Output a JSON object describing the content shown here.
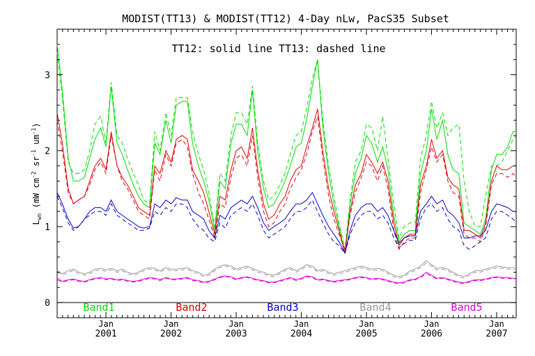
{
  "chart_data": {
    "type": "line",
    "title": "MODIST(TT13) & MODIST(TT12) 4-Day nLw, PacS35 Subset",
    "subtitle": "TT12: solid line   TT13: dashed line",
    "ylabel_main": "L",
    "ylabel_sub": "wn",
    "ylabel_units_a": "(mW cm",
    "ylabel_units_b": "sr",
    "ylabel_units_c": "um",
    "ylabel_units_d": ")",
    "ylabel_exp": "-2",
    "ylabel_exp2": "-1",
    "ylabel_exp3": "-1",
    "xlim": [
      2000.25,
      2007.3
    ],
    "ylim": [
      -0.2,
      3.6
    ],
    "y_ticks": [
      0,
      1,
      2,
      3
    ],
    "y_ticklabels": [
      "0",
      "1",
      "2",
      "3"
    ],
    "x_ticks": [
      2001.0,
      2002.0,
      2003.0,
      2004.0,
      2005.0,
      2006.0,
      2007.0
    ],
    "x_month_label": "Jan",
    "x_year_labels": [
      "2001",
      "2002",
      "2003",
      "2004",
      "2005",
      "2006",
      "2007"
    ],
    "grid": false,
    "legend_position": "bottom, inside plot",
    "x": [
      2000.25,
      2000.33,
      2000.42,
      2000.5,
      2000.58,
      2000.67,
      2000.75,
      2000.83,
      2000.92,
      2001.0,
      2001.08,
      2001.17,
      2001.25,
      2001.33,
      2001.42,
      2001.5,
      2001.58,
      2001.67,
      2001.75,
      2001.83,
      2001.92,
      2002.0,
      2002.08,
      2002.17,
      2002.25,
      2002.33,
      2002.42,
      2002.5,
      2002.58,
      2002.67,
      2002.75,
      2002.83,
      2002.92,
      2003.0,
      2003.08,
      2003.17,
      2003.25,
      2003.33,
      2003.42,
      2003.5,
      2003.58,
      2003.67,
      2003.75,
      2003.83,
      2003.92,
      2004.0,
      2004.08,
      2004.17,
      2004.25,
      2004.33,
      2004.42,
      2004.5,
      2004.58,
      2004.67,
      2004.75,
      2004.83,
      2004.92,
      2005.0,
      2005.08,
      2005.17,
      2005.25,
      2005.33,
      2005.42,
      2005.5,
      2005.58,
      2005.67,
      2005.75,
      2005.83,
      2005.92,
      2006.0,
      2006.08,
      2006.17,
      2006.25,
      2006.33,
      2006.42,
      2006.5,
      2006.58,
      2006.67,
      2006.75,
      2006.83,
      2006.92,
      2007.0,
      2007.08,
      2007.17,
      2007.25,
      2007.3
    ],
    "series": [
      {
        "name": "Band1",
        "color": "#00dd00",
        "style": "solid",
        "values": [
          3.4,
          2.8,
          1.9,
          1.6,
          1.6,
          1.65,
          1.9,
          2.15,
          2.3,
          2.05,
          2.85,
          2.1,
          1.95,
          1.75,
          1.55,
          1.4,
          1.3,
          1.25,
          2.1,
          1.95,
          2.4,
          2.1,
          2.6,
          2.65,
          2.65,
          2.1,
          1.8,
          1.6,
          1.35,
          0.95,
          1.6,
          1.5,
          2.1,
          2.35,
          2.35,
          2.2,
          2.8,
          2.0,
          1.5,
          1.25,
          1.3,
          1.45,
          1.6,
          1.8,
          2.05,
          2.1,
          2.4,
          2.85,
          3.2,
          2.3,
          1.7,
          1.3,
          1.0,
          0.65,
          1.3,
          1.7,
          1.9,
          2.2,
          2.1,
          1.85,
          2.05,
          1.75,
          1.15,
          0.8,
          0.9,
          0.95,
          0.95,
          1.7,
          2.0,
          2.55,
          2.15,
          2.4,
          1.95,
          1.75,
          1.7,
          1.05,
          1.0,
          0.95,
          0.9,
          1.1,
          1.75,
          1.95,
          1.95,
          2.05,
          2.25,
          2.25
        ]
      },
      {
        "name": "Band1 TT13",
        "color": "#00dd00",
        "style": "dashed",
        "values": [
          3.3,
          2.7,
          1.85,
          1.7,
          1.7,
          1.75,
          2.0,
          2.35,
          2.45,
          2.1,
          2.9,
          2.2,
          2.1,
          1.9,
          1.7,
          1.55,
          1.35,
          1.3,
          2.25,
          2.0,
          2.5,
          2.2,
          2.7,
          2.7,
          2.7,
          2.25,
          1.95,
          1.75,
          1.45,
          1.0,
          1.7,
          1.6,
          2.2,
          2.5,
          2.5,
          2.35,
          2.85,
          2.1,
          1.6,
          1.35,
          1.4,
          1.55,
          1.7,
          1.95,
          2.2,
          2.25,
          2.55,
          2.95,
          3.2,
          2.4,
          1.8,
          1.4,
          1.05,
          0.7,
          1.35,
          1.85,
          2.0,
          2.35,
          2.3,
          2.0,
          2.45,
          1.9,
          1.3,
          0.85,
          1.0,
          1.05,
          1.05,
          1.9,
          2.2,
          2.65,
          2.3,
          2.5,
          2.2,
          2.3,
          2.35,
          1.6,
          1.2,
          1.0,
          1.0,
          1.4,
          1.8,
          1.8,
          1.85,
          2.0,
          2.15,
          2.2
        ]
      },
      {
        "name": "Band2",
        "color": "#dd0000",
        "style": "solid",
        "values": [
          2.5,
          2.1,
          1.5,
          1.3,
          1.35,
          1.4,
          1.6,
          1.8,
          1.9,
          1.75,
          2.25,
          1.8,
          1.65,
          1.55,
          1.4,
          1.25,
          1.2,
          1.15,
          1.8,
          1.7,
          2.0,
          1.85,
          2.15,
          2.2,
          2.15,
          1.75,
          1.6,
          1.45,
          1.2,
          0.9,
          1.4,
          1.35,
          1.75,
          2.0,
          2.05,
          1.9,
          2.3,
          1.75,
          1.3,
          1.1,
          1.15,
          1.3,
          1.4,
          1.6,
          1.75,
          1.8,
          2.05,
          2.3,
          2.55,
          2.0,
          1.5,
          1.2,
          0.95,
          0.65,
          1.2,
          1.55,
          1.7,
          1.95,
          1.85,
          1.7,
          1.85,
          1.6,
          1.05,
          0.75,
          0.85,
          0.9,
          0.9,
          1.55,
          1.8,
          2.15,
          1.9,
          2.0,
          1.65,
          1.55,
          1.5,
          0.95,
          0.95,
          0.9,
          0.85,
          1.05,
          1.6,
          1.8,
          1.75,
          1.75,
          1.8,
          1.8
        ]
      },
      {
        "name": "Band2 TT13",
        "color": "#dd0000",
        "style": "dashed",
        "values": [
          2.4,
          2.0,
          1.45,
          1.3,
          1.35,
          1.4,
          1.55,
          1.75,
          1.85,
          1.7,
          2.2,
          1.8,
          1.6,
          1.5,
          1.35,
          1.2,
          1.15,
          1.1,
          1.75,
          1.6,
          1.95,
          1.8,
          2.1,
          2.15,
          2.05,
          1.7,
          1.45,
          1.3,
          1.1,
          0.85,
          1.3,
          1.25,
          1.65,
          1.9,
          1.95,
          1.8,
          2.2,
          1.65,
          1.2,
          1.0,
          1.05,
          1.2,
          1.3,
          1.5,
          1.65,
          1.75,
          1.95,
          2.25,
          2.45,
          1.9,
          1.4,
          1.1,
          0.9,
          0.7,
          1.15,
          1.45,
          1.65,
          1.85,
          1.8,
          1.6,
          1.8,
          1.5,
          0.95,
          0.7,
          0.8,
          0.85,
          0.85,
          1.45,
          1.75,
          2.05,
          1.85,
          1.95,
          1.6,
          1.45,
          1.4,
          0.9,
          0.85,
          0.85,
          0.8,
          1.0,
          1.55,
          1.7,
          1.7,
          1.65,
          1.7,
          1.65
        ]
      },
      {
        "name": "Band3",
        "color": "#0000cc",
        "style": "solid",
        "values": [
          1.45,
          1.3,
          1.1,
          0.98,
          1.0,
          1.1,
          1.2,
          1.25,
          1.25,
          1.2,
          1.35,
          1.2,
          1.15,
          1.1,
          1.05,
          1.0,
          0.98,
          1.0,
          1.3,
          1.25,
          1.35,
          1.3,
          1.38,
          1.35,
          1.35,
          1.2,
          1.15,
          1.1,
          0.95,
          0.85,
          1.15,
          1.1,
          1.25,
          1.3,
          1.35,
          1.3,
          1.4,
          1.25,
          1.05,
          0.95,
          1.0,
          1.05,
          1.1,
          1.2,
          1.3,
          1.3,
          1.35,
          1.45,
          1.3,
          1.15,
          1.0,
          0.9,
          0.8,
          0.65,
          0.95,
          1.15,
          1.25,
          1.3,
          1.3,
          1.2,
          1.25,
          1.15,
          0.95,
          0.78,
          0.85,
          0.88,
          0.88,
          1.2,
          1.3,
          1.4,
          1.3,
          1.35,
          1.2,
          1.15,
          1.05,
          0.85,
          0.85,
          0.88,
          0.88,
          0.95,
          1.2,
          1.3,
          1.28,
          1.25,
          1.2,
          1.2
        ]
      },
      {
        "name": "Band3 TT13",
        "color": "#0000cc",
        "style": "dashed",
        "values": [
          1.4,
          1.25,
          1.05,
          0.95,
          1.0,
          1.1,
          1.15,
          1.2,
          1.2,
          1.15,
          1.3,
          1.15,
          1.1,
          1.05,
          1.0,
          0.95,
          0.95,
          0.98,
          1.2,
          1.15,
          1.25,
          1.2,
          1.3,
          1.3,
          1.25,
          1.1,
          1.0,
          0.95,
          0.85,
          0.8,
          1.05,
          0.98,
          1.15,
          1.2,
          1.25,
          1.2,
          1.3,
          1.15,
          0.95,
          0.85,
          0.9,
          0.95,
          1.0,
          1.1,
          1.2,
          1.2,
          1.25,
          1.35,
          1.2,
          1.05,
          0.9,
          0.8,
          0.75,
          0.65,
          0.9,
          1.05,
          1.15,
          1.2,
          1.2,
          1.1,
          1.15,
          1.05,
          0.85,
          0.72,
          0.78,
          0.82,
          0.82,
          1.1,
          1.25,
          1.3,
          1.2,
          1.25,
          1.1,
          1.0,
          0.95,
          0.75,
          0.7,
          0.75,
          0.8,
          0.85,
          1.1,
          1.2,
          1.2,
          1.15,
          1.1,
          1.05
        ]
      },
      {
        "name": "Band4",
        "color": "#999999",
        "style": "solid",
        "values": [
          0.42,
          0.38,
          0.42,
          0.44,
          0.4,
          0.38,
          0.4,
          0.44,
          0.45,
          0.43,
          0.45,
          0.42,
          0.44,
          0.4,
          0.38,
          0.4,
          0.44,
          0.46,
          0.45,
          0.42,
          0.46,
          0.44,
          0.44,
          0.45,
          0.46,
          0.42,
          0.4,
          0.36,
          0.38,
          0.44,
          0.48,
          0.5,
          0.48,
          0.44,
          0.46,
          0.48,
          0.45,
          0.42,
          0.4,
          0.37,
          0.36,
          0.4,
          0.44,
          0.46,
          0.42,
          0.45,
          0.5,
          0.48,
          0.42,
          0.44,
          0.4,
          0.38,
          0.4,
          0.42,
          0.44,
          0.46,
          0.48,
          0.46,
          0.44,
          0.45,
          0.44,
          0.4,
          0.36,
          0.34,
          0.36,
          0.42,
          0.44,
          0.48,
          0.55,
          0.5,
          0.45,
          0.46,
          0.44,
          0.4,
          0.36,
          0.34,
          0.38,
          0.42,
          0.42,
          0.44,
          0.46,
          0.48,
          0.47,
          0.46,
          0.46,
          0.45
        ]
      },
      {
        "name": "Band4 TT13",
        "color": "#999999",
        "style": "dashed",
        "values": [
          0.4,
          0.36,
          0.4,
          0.42,
          0.38,
          0.36,
          0.38,
          0.42,
          0.43,
          0.41,
          0.43,
          0.4,
          0.42,
          0.38,
          0.36,
          0.38,
          0.42,
          0.44,
          0.43,
          0.4,
          0.44,
          0.42,
          0.42,
          0.43,
          0.44,
          0.4,
          0.38,
          0.34,
          0.36,
          0.42,
          0.46,
          0.48,
          0.46,
          0.42,
          0.44,
          0.46,
          0.43,
          0.4,
          0.38,
          0.35,
          0.34,
          0.38,
          0.42,
          0.44,
          0.4,
          0.43,
          0.48,
          0.46,
          0.4,
          0.42,
          0.38,
          0.36,
          0.38,
          0.4,
          0.42,
          0.44,
          0.46,
          0.44,
          0.42,
          0.43,
          0.42,
          0.38,
          0.34,
          0.32,
          0.34,
          0.4,
          0.42,
          0.46,
          0.52,
          0.48,
          0.43,
          0.44,
          0.42,
          0.38,
          0.34,
          0.32,
          0.36,
          0.4,
          0.4,
          0.42,
          0.44,
          0.46,
          0.45,
          0.44,
          0.44,
          0.43
        ]
      },
      {
        "name": "Band5",
        "color": "#dd00dd",
        "style": "solid",
        "values": [
          0.32,
          0.28,
          0.3,
          0.31,
          0.29,
          0.28,
          0.3,
          0.32,
          0.33,
          0.31,
          0.32,
          0.3,
          0.31,
          0.29,
          0.28,
          0.29,
          0.31,
          0.33,
          0.32,
          0.3,
          0.33,
          0.31,
          0.31,
          0.32,
          0.33,
          0.3,
          0.29,
          0.27,
          0.28,
          0.31,
          0.34,
          0.35,
          0.34,
          0.31,
          0.33,
          0.34,
          0.32,
          0.3,
          0.29,
          0.27,
          0.27,
          0.29,
          0.31,
          0.33,
          0.3,
          0.32,
          0.35,
          0.34,
          0.3,
          0.31,
          0.29,
          0.28,
          0.29,
          0.3,
          0.31,
          0.33,
          0.34,
          0.33,
          0.31,
          0.32,
          0.31,
          0.29,
          0.27,
          0.26,
          0.27,
          0.3,
          0.31,
          0.34,
          0.4,
          0.36,
          0.32,
          0.33,
          0.31,
          0.29,
          0.27,
          0.26,
          0.28,
          0.3,
          0.3,
          0.31,
          0.33,
          0.34,
          0.33,
          0.33,
          0.32,
          0.32
        ]
      },
      {
        "name": "Band5 TT13",
        "color": "#dd00dd",
        "style": "dashed",
        "values": [
          0.3,
          0.27,
          0.29,
          0.3,
          0.28,
          0.27,
          0.29,
          0.31,
          0.32,
          0.3,
          0.31,
          0.29,
          0.3,
          0.28,
          0.27,
          0.28,
          0.3,
          0.32,
          0.31,
          0.29,
          0.32,
          0.3,
          0.3,
          0.31,
          0.32,
          0.29,
          0.28,
          0.26,
          0.27,
          0.3,
          0.33,
          0.34,
          0.33,
          0.3,
          0.32,
          0.33,
          0.31,
          0.29,
          0.28,
          0.26,
          0.26,
          0.28,
          0.3,
          0.32,
          0.29,
          0.31,
          0.34,
          0.33,
          0.29,
          0.3,
          0.28,
          0.27,
          0.28,
          0.29,
          0.3,
          0.32,
          0.33,
          0.32,
          0.3,
          0.31,
          0.3,
          0.28,
          0.26,
          0.25,
          0.26,
          0.29,
          0.3,
          0.33,
          0.38,
          0.35,
          0.31,
          0.32,
          0.3,
          0.28,
          0.26,
          0.25,
          0.27,
          0.29,
          0.29,
          0.3,
          0.32,
          0.33,
          0.32,
          0.32,
          0.31,
          0.31
        ]
      }
    ],
    "legend": [
      {
        "label": "Band1",
        "color": "#00dd00"
      },
      {
        "label": "Band2",
        "color": "#dd0000"
      },
      {
        "label": "Band3",
        "color": "#0000cc"
      },
      {
        "label": "Band4",
        "color": "#999999"
      },
      {
        "label": "Band5",
        "color": "#dd00dd"
      }
    ]
  }
}
